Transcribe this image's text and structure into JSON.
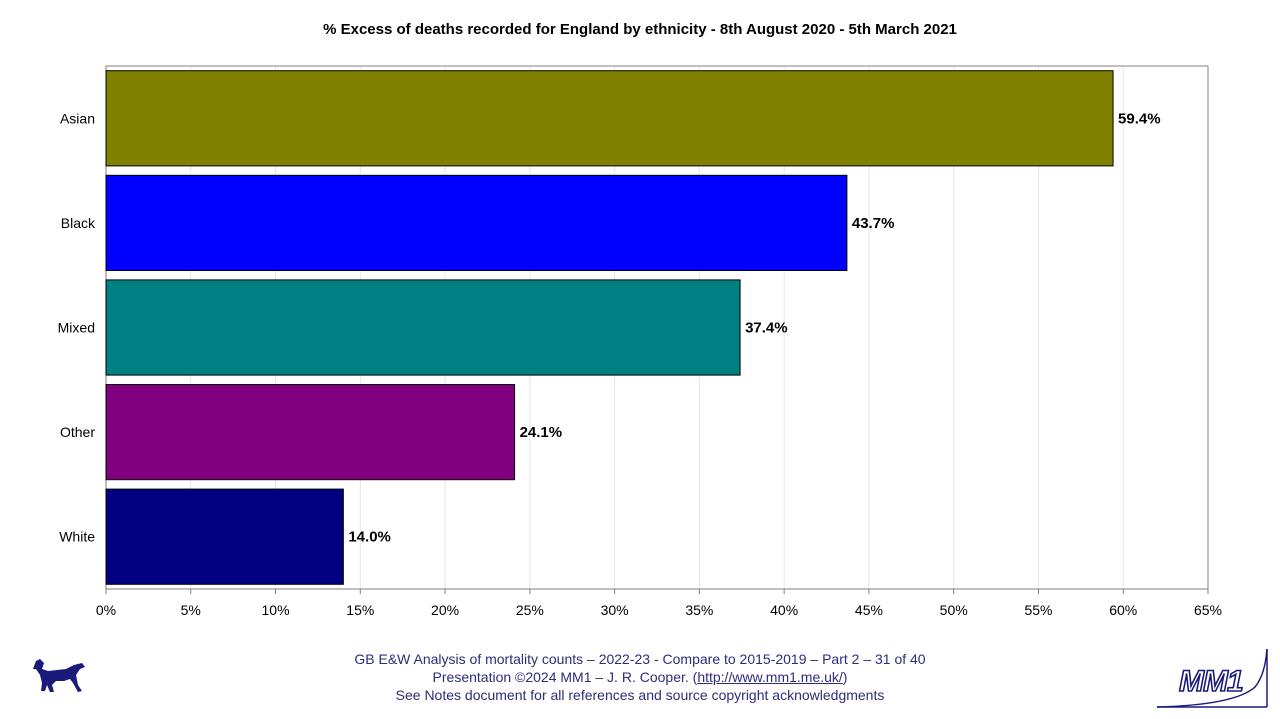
{
  "chart_data": {
    "type": "bar",
    "orientation": "horizontal",
    "title": "% Excess of deaths recorded for England by ethnicity - 8th August 2020 - 5th March 2021",
    "categories": [
      "Asian",
      "Black",
      "Mixed",
      "Other",
      "White"
    ],
    "values": [
      59.4,
      43.7,
      37.4,
      24.1,
      14.0
    ],
    "data_labels": [
      "59.4%",
      "43.7%",
      "37.4%",
      "24.1%",
      "14.0%"
    ],
    "colors": [
      "#808000",
      "#0000ff",
      "#008080",
      "#800080",
      "#000080"
    ],
    "xlim": [
      0,
      65
    ],
    "x_ticks": [
      0,
      5,
      10,
      15,
      20,
      25,
      30,
      35,
      40,
      45,
      50,
      55,
      60,
      65
    ],
    "x_tick_labels": [
      "0%",
      "5%",
      "10%",
      "15%",
      "20%",
      "25%",
      "30%",
      "35%",
      "40%",
      "45%",
      "50%",
      "55%",
      "60%",
      "65%"
    ],
    "grid": true,
    "xlabel": "",
    "ylabel": ""
  },
  "footer": {
    "line1": "GB E&W Analysis of mortality counts – 2022-23 - Compare to 2015-2019 – Part 2 – 31 of 40",
    "line2_prefix": "Presentation ©2024 MM1 – J. R. Cooper. (",
    "line2_link": "http://www.mm1.me.uk/",
    "line2_suffix": ")",
    "line3": "See Notes document for all references and source copyright acknowledgments"
  },
  "logos": {
    "left_icon": "dog-icon",
    "right_text": "MM1"
  }
}
